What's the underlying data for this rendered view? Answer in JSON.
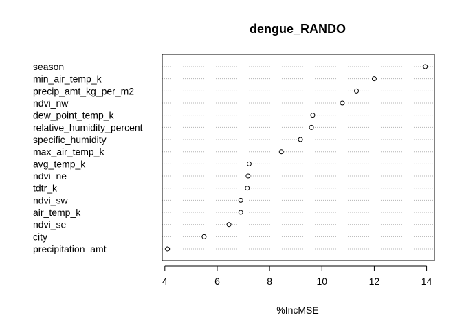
{
  "chart_data": {
    "type": "scatter",
    "title": "dengue_RANDO",
    "xlabel": "%IncMSE",
    "ylabel": "",
    "xlim": [
      3.9,
      14.3
    ],
    "xticks": [
      4,
      6,
      8,
      10,
      12,
      14
    ],
    "grid": "horizontal-dotted",
    "categories": [
      "season",
      "min_air_temp_k",
      "precip_amt_kg_per_m2",
      "ndvi_nw",
      "dew_point_temp_k",
      "relative_humidity_percent",
      "specific_humidity",
      "max_air_temp_k",
      "avg_temp_k",
      "ndvi_ne",
      "tdtr_k",
      "ndvi_sw",
      "air_temp_k",
      "ndvi_se",
      "city",
      "precipitation_amt"
    ],
    "values": [
      13.95,
      12.0,
      11.32,
      10.78,
      9.65,
      9.6,
      9.18,
      8.45,
      7.22,
      7.18,
      7.15,
      6.9,
      6.9,
      6.45,
      5.5,
      4.1
    ]
  }
}
